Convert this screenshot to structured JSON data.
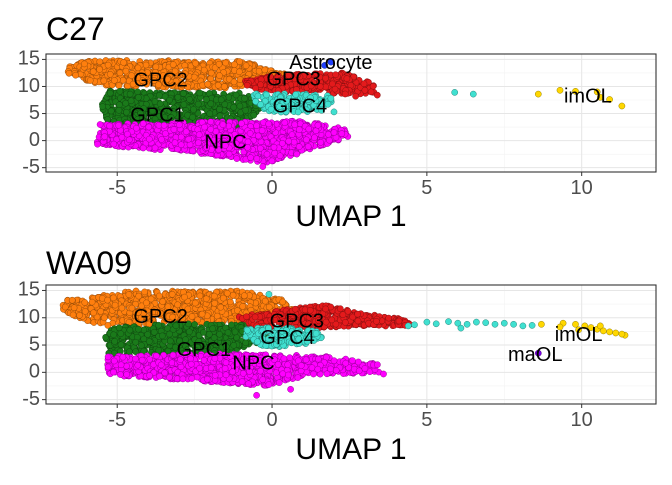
{
  "chart_data": [
    {
      "type": "scatter",
      "title": "C27",
      "xlabel": "UMAP 1",
      "ylabel": "",
      "xlim": [
        -7.3,
        12.4
      ],
      "ylim": [
        -5.8,
        16.0
      ],
      "xticks": [
        -5,
        0,
        5,
        10
      ],
      "yticks": [
        -5,
        0,
        5,
        10,
        15
      ],
      "grid": true,
      "clusters": [
        {
          "name": "GPC2",
          "color": "#ff7f0e",
          "label_at": [
            -3.6,
            11.0
          ],
          "blobs": [
            [
              -6.5,
              14.8,
              -1.0,
              14.8,
              0.5,
              12.2,
              -1.2,
              9.7,
              -5.5,
              10.0,
              -6.6,
              12.5
            ]
          ],
          "points": []
        },
        {
          "name": "GPC1",
          "color": "#1a7a1a",
          "label_at": [
            -3.7,
            4.5
          ],
          "blobs": [
            [
              -5.3,
              9.2,
              -2.5,
              8.8,
              -0.8,
              8.8,
              -0.3,
              6.0,
              -1.0,
              2.8,
              -5.4,
              3.0,
              -5.5,
              6.5
            ]
          ],
          "points": []
        },
        {
          "name": "NPC",
          "color": "#ff00ff",
          "label_at": [
            -1.5,
            -0.5
          ],
          "blobs": [
            [
              -5.6,
              3.0,
              -2.0,
              3.5,
              1.0,
              3.6,
              2.3,
              2.5,
              2.6,
              0.8,
              1.2,
              -1.6,
              -0.2,
              -4.3,
              -2.5,
              -2.2,
              -5.8,
              -0.8,
              -5.5,
              1.8
            ]
          ],
          "points": [
            [
              -0.3,
              -4.8
            ],
            [
              0.8,
              -2.5
            ],
            [
              2.0,
              1.5
            ]
          ]
        },
        {
          "name": "GPC3",
          "color": "#e41a1c",
          "label_at": [
            0.7,
            11.2
          ],
          "blobs": [
            [
              -0.9,
              11.2,
              0.2,
              12.2,
              2.2,
              12.6,
              2.8,
              11.6,
              3.3,
              10.3,
              3.4,
              8.5,
              2.0,
              8.6,
              0.0,
              9.0,
              -0.8,
              10.0
            ]
          ],
          "points": [
            [
              3.2,
              9.0
            ],
            [
              3.4,
              8.4
            ],
            [
              3.0,
              9.3
            ],
            [
              2.7,
              8.2
            ]
          ]
        },
        {
          "name": "GPC4",
          "color": "#40e0d0",
          "label_at": [
            0.9,
            6.2
          ],
          "blobs": [
            [
              -0.6,
              8.6,
              0.5,
              8.8,
              1.8,
              8.3,
              2.1,
              6.7,
              1.2,
              5.3,
              -0.1,
              5.2,
              -0.5,
              6.6
            ]
          ],
          "points": [
            [
              5.9,
              8.9
            ],
            [
              6.5,
              8.6
            ],
            [
              2.0,
              5.3
            ],
            [
              1.6,
              5.6
            ],
            [
              1.9,
              7.8
            ]
          ]
        },
        {
          "name": "Astrocyte",
          "color": "#1f3fff",
          "label_at": [
            1.9,
            14.2
          ],
          "blobs": [],
          "points": [
            [
              1.9,
              14.5
            ],
            [
              1.7,
              13.9
            ]
          ]
        },
        {
          "name": "imOL",
          "color": "#ffd700",
          "label_at": [
            10.2,
            8.0
          ],
          "blobs": [],
          "points": [
            [
              8.6,
              8.6
            ],
            [
              9.3,
              9.3
            ],
            [
              9.8,
              9.1
            ],
            [
              10.5,
              9.0
            ],
            [
              10.9,
              7.6
            ],
            [
              11.3,
              6.4
            ],
            [
              10.6,
              8.0
            ]
          ]
        }
      ]
    },
    {
      "type": "scatter",
      "title": "WA09",
      "xlabel": "UMAP 1",
      "ylabel": "",
      "xlim": [
        -7.3,
        12.4
      ],
      "ylim": [
        -5.8,
        16.0
      ],
      "xticks": [
        -5,
        0,
        5,
        10
      ],
      "yticks": [
        -5,
        0,
        5,
        10,
        15
      ],
      "grid": true,
      "clusters": [
        {
          "name": "GPC2",
          "color": "#ff7f0e",
          "label_at": [
            -3.6,
            10.0
          ],
          "blobs": [
            [
              -6.7,
              13.2,
              -4.5,
              14.9,
              -1.0,
              14.9,
              0.3,
              13.5,
              0.7,
              11.5,
              -1.2,
              9.0,
              -4.0,
              8.5,
              -6.0,
              9.2,
              -6.8,
              11.5
            ]
          ],
          "points": [
            [
              -5.3,
              8.6
            ],
            [
              -1.0,
              8.9
            ]
          ]
        },
        {
          "name": "GPC1",
          "color": "#1a7a1a",
          "label_at": [
            -2.2,
            4.0
          ],
          "blobs": [
            [
              -5.2,
              8.2,
              -3.0,
              9.0,
              -0.6,
              8.8,
              0.0,
              6.0,
              -1.8,
              3.2,
              -5.3,
              3.0,
              -5.4,
              6.5
            ]
          ],
          "points": []
        },
        {
          "name": "NPC",
          "color": "#ff00ff",
          "label_at": [
            -0.6,
            1.5
          ],
          "blobs": [
            [
              -5.4,
              2.9,
              -1.8,
              3.4,
              1.8,
              3.0,
              3.4,
              1.5,
              3.5,
              0.0,
              1.2,
              -0.5,
              -0.2,
              -2.5,
              -2.5,
              -1.5,
              -5.3,
              -0.5
            ]
          ],
          "points": [
            [
              -0.5,
              -4.2
            ],
            [
              0.6,
              -3.1
            ],
            [
              3.6,
              -0.3
            ]
          ]
        },
        {
          "name": "GPC3",
          "color": "#e41a1c",
          "label_at": [
            0.8,
            9.2
          ],
          "blobs": [
            [
              -1.1,
              10.2,
              0.2,
              11.3,
              1.8,
              12.5,
              2.6,
              11.1,
              3.5,
              10.3,
              4.2,
              9.8,
              4.5,
              8.7,
              3.8,
              8.5,
              2.5,
              8.4,
              1.0,
              7.9,
              -0.6,
              8.2
            ]
          ],
          "points": [
            [
              4.3,
              8.6
            ],
            [
              4.1,
              9.4
            ]
          ]
        },
        {
          "name": "GPC4",
          "color": "#40e0d0",
          "label_at": [
            0.5,
            6.2
          ],
          "blobs": [
            [
              -0.8,
              8.2,
              0.5,
              8.2,
              1.6,
              7.6,
              1.7,
              6.2,
              0.7,
              4.6,
              -0.3,
              4.8,
              -0.9,
              6.6
            ]
          ],
          "points": [
            [
              4.6,
              8.7
            ],
            [
              5.0,
              9.2
            ],
            [
              5.3,
              8.9
            ],
            [
              5.7,
              9.3
            ],
            [
              6.0,
              9.0
            ],
            [
              6.3,
              8.8
            ],
            [
              6.6,
              9.2
            ],
            [
              6.9,
              9.1
            ],
            [
              7.2,
              8.8
            ],
            [
              7.5,
              9.0
            ],
            [
              7.8,
              8.8
            ],
            [
              8.1,
              8.5
            ],
            [
              8.4,
              8.6
            ],
            [
              6.1,
              8.1
            ],
            [
              4.4,
              8.5
            ],
            [
              -0.1,
              14.3
            ]
          ]
        },
        {
          "name": "maOL",
          "color": "#7a00e6",
          "label_at": [
            8.5,
            3.0
          ],
          "blobs": [],
          "points": [
            [
              8.6,
              3.5
            ]
          ]
        },
        {
          "name": "imOL",
          "color": "#ffd700",
          "label_at": [
            9.9,
            6.7
          ],
          "blobs": [],
          "points": [
            [
              8.7,
              8.8
            ],
            [
              9.4,
              9.0
            ],
            [
              9.8,
              8.8
            ],
            [
              10.1,
              8.5
            ],
            [
              10.3,
              8.2
            ],
            [
              10.5,
              7.9
            ],
            [
              10.7,
              7.6
            ],
            [
              10.9,
              7.4
            ],
            [
              11.1,
              7.2
            ],
            [
              11.4,
              6.8
            ],
            [
              10.6,
              8.5
            ],
            [
              11.3,
              7.0
            ],
            [
              9.3,
              8.3
            ],
            [
              9.9,
              7.8
            ]
          ]
        }
      ]
    }
  ]
}
